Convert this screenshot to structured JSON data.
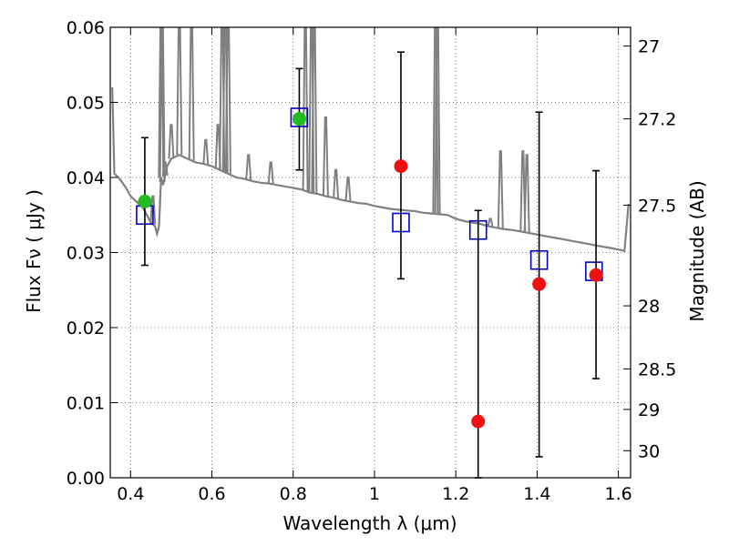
{
  "chart_data": {
    "type": "scatter",
    "xlabel": "Wavelength  λ (μm)",
    "ylabel": "Flux  Fν ( μJy )",
    "y2label": "Magnitude (AB)",
    "xlim": [
      0.35,
      1.63
    ],
    "ylim": [
      0.0,
      0.06
    ],
    "xticks": [
      0.4,
      0.6,
      0.8,
      1.0,
      1.2,
      1.4,
      1.6
    ],
    "xtick_labels": [
      "0.4",
      "0.6",
      "0.8",
      "1",
      "1.2",
      "1.4",
      "1.6"
    ],
    "yticks": [
      0.0,
      0.01,
      0.02,
      0.03,
      0.04,
      0.05,
      0.06
    ],
    "ytick_labels": [
      "0.00",
      "0.01",
      "0.02",
      "0.03",
      "0.04",
      "0.05",
      "0.06"
    ],
    "y2ticks": [
      {
        "label": "27",
        "flux": 0.0575
      },
      {
        "label": "27.2",
        "flux": 0.0478
      },
      {
        "label": "27.5",
        "flux": 0.0363
      },
      {
        "label": "28",
        "flux": 0.0229
      },
      {
        "label": "28.5",
        "flux": 0.0145
      },
      {
        "label": "29",
        "flux": 0.0091
      },
      {
        "label": "30",
        "flux": 0.0036
      }
    ],
    "grid": true,
    "colors": {
      "model": "#808080",
      "model_flux": "#0000cc",
      "detection_green": "#22bb22",
      "measurement_red": "#ee1111",
      "errorbar": "#000000"
    },
    "model_spectrum": {
      "x": [
        0.355,
        0.36,
        0.37,
        0.38,
        0.39,
        0.4,
        0.41,
        0.42,
        0.43,
        0.44,
        0.45,
        0.46,
        0.465,
        0.47,
        0.475,
        0.48,
        0.49,
        0.5,
        0.52,
        0.54,
        0.56,
        0.58,
        0.6,
        0.62,
        0.64,
        0.66,
        0.68,
        0.7,
        0.72,
        0.74,
        0.76,
        0.78,
        0.8,
        0.82,
        0.84,
        0.86,
        0.88,
        0.9,
        0.92,
        0.94,
        0.96,
        0.98,
        1.0,
        1.02,
        1.04,
        1.06,
        1.08,
        1.1,
        1.12,
        1.14,
        1.16,
        1.18,
        1.2,
        1.22,
        1.24,
        1.26,
        1.28,
        1.3,
        1.32,
        1.34,
        1.36,
        1.38,
        1.4,
        1.42,
        1.44,
        1.46,
        1.48,
        1.5,
        1.52,
        1.54,
        1.56,
        1.58,
        1.6,
        1.615,
        1.625
      ],
      "y": [
        0.052,
        0.0405,
        0.04,
        0.0393,
        0.0385,
        0.0375,
        0.037,
        0.0365,
        0.036,
        0.035,
        0.034,
        0.0335,
        0.0325,
        0.0335,
        0.04,
        0.039,
        0.0415,
        0.0425,
        0.043,
        0.0425,
        0.042,
        0.0418,
        0.0415,
        0.041,
        0.0405,
        0.04,
        0.0398,
        0.0395,
        0.0393,
        0.0392,
        0.039,
        0.0388,
        0.0386,
        0.0384,
        0.038,
        0.0378,
        0.0375,
        0.0373,
        0.037,
        0.0368,
        0.0366,
        0.0365,
        0.0362,
        0.036,
        0.0358,
        0.0357,
        0.0356,
        0.0355,
        0.0353,
        0.0352,
        0.0351,
        0.035,
        0.0345,
        0.0342,
        0.034,
        0.0338,
        0.0335,
        0.0333,
        0.0331,
        0.033,
        0.0328,
        0.0326,
        0.0324,
        0.0322,
        0.032,
        0.0318,
        0.0316,
        0.0314,
        0.0312,
        0.031,
        0.0308,
        0.0306,
        0.0304,
        0.0302,
        0.0365
      ]
    },
    "model_spectrum_emission_lines": [
      {
        "x": 0.455,
        "peak": 0.0375
      },
      {
        "x": 0.475,
        "peak": 0.062
      },
      {
        "x": 0.478,
        "peak": 0.062
      },
      {
        "x": 0.485,
        "peak": 0.042
      },
      {
        "x": 0.5,
        "peak": 0.047
      },
      {
        "x": 0.52,
        "peak": 0.062
      },
      {
        "x": 0.55,
        "peak": 0.062
      },
      {
        "x": 0.585,
        "peak": 0.045
      },
      {
        "x": 0.615,
        "peak": 0.047
      },
      {
        "x": 0.625,
        "peak": 0.062
      },
      {
        "x": 0.633,
        "peak": 0.062
      },
      {
        "x": 0.64,
        "peak": 0.062
      },
      {
        "x": 0.69,
        "peak": 0.043
      },
      {
        "x": 0.745,
        "peak": 0.042
      },
      {
        "x": 0.83,
        "peak": 0.062
      },
      {
        "x": 0.845,
        "peak": 0.062
      },
      {
        "x": 0.852,
        "peak": 0.062
      },
      {
        "x": 0.88,
        "peak": 0.048
      },
      {
        "x": 0.905,
        "peak": 0.041
      },
      {
        "x": 0.935,
        "peak": 0.04
      },
      {
        "x": 1.15,
        "peak": 0.062
      },
      {
        "x": 1.155,
        "peak": 0.062
      },
      {
        "x": 1.285,
        "peak": 0.0345
      },
      {
        "x": 1.31,
        "peak": 0.0435
      },
      {
        "x": 1.365,
        "peak": 0.0435
      },
      {
        "x": 1.375,
        "peak": 0.043
      }
    ],
    "model_flux_squares": [
      {
        "x": 0.435,
        "y": 0.035
      },
      {
        "x": 0.815,
        "y": 0.048
      },
      {
        "x": 1.065,
        "y": 0.034
      },
      {
        "x": 1.255,
        "y": 0.033
      },
      {
        "x": 1.405,
        "y": 0.029
      },
      {
        "x": 1.54,
        "y": 0.0275
      }
    ],
    "observed_points": [
      {
        "x": 0.435,
        "y": 0.0368,
        "yerr_low": 0.0085,
        "yerr_high": 0.0085,
        "color": "green"
      },
      {
        "x": 0.815,
        "y": 0.0478,
        "yerr_low": 0.0068,
        "yerr_high": 0.0067,
        "color": "green"
      },
      {
        "x": 1.065,
        "y": 0.0415,
        "yerr_low": 0.015,
        "yerr_high": 0.0152,
        "color": "red"
      },
      {
        "x": 1.255,
        "y": 0.0075,
        "yerr_low": 0.0075,
        "yerr_high": 0.0281,
        "color": "red"
      },
      {
        "x": 1.405,
        "y": 0.0258,
        "yerr_low": 0.023,
        "yerr_high": 0.0229,
        "color": "red"
      },
      {
        "x": 1.545,
        "y": 0.027,
        "yerr_low": 0.0138,
        "yerr_high": 0.0139,
        "color": "red"
      }
    ]
  }
}
